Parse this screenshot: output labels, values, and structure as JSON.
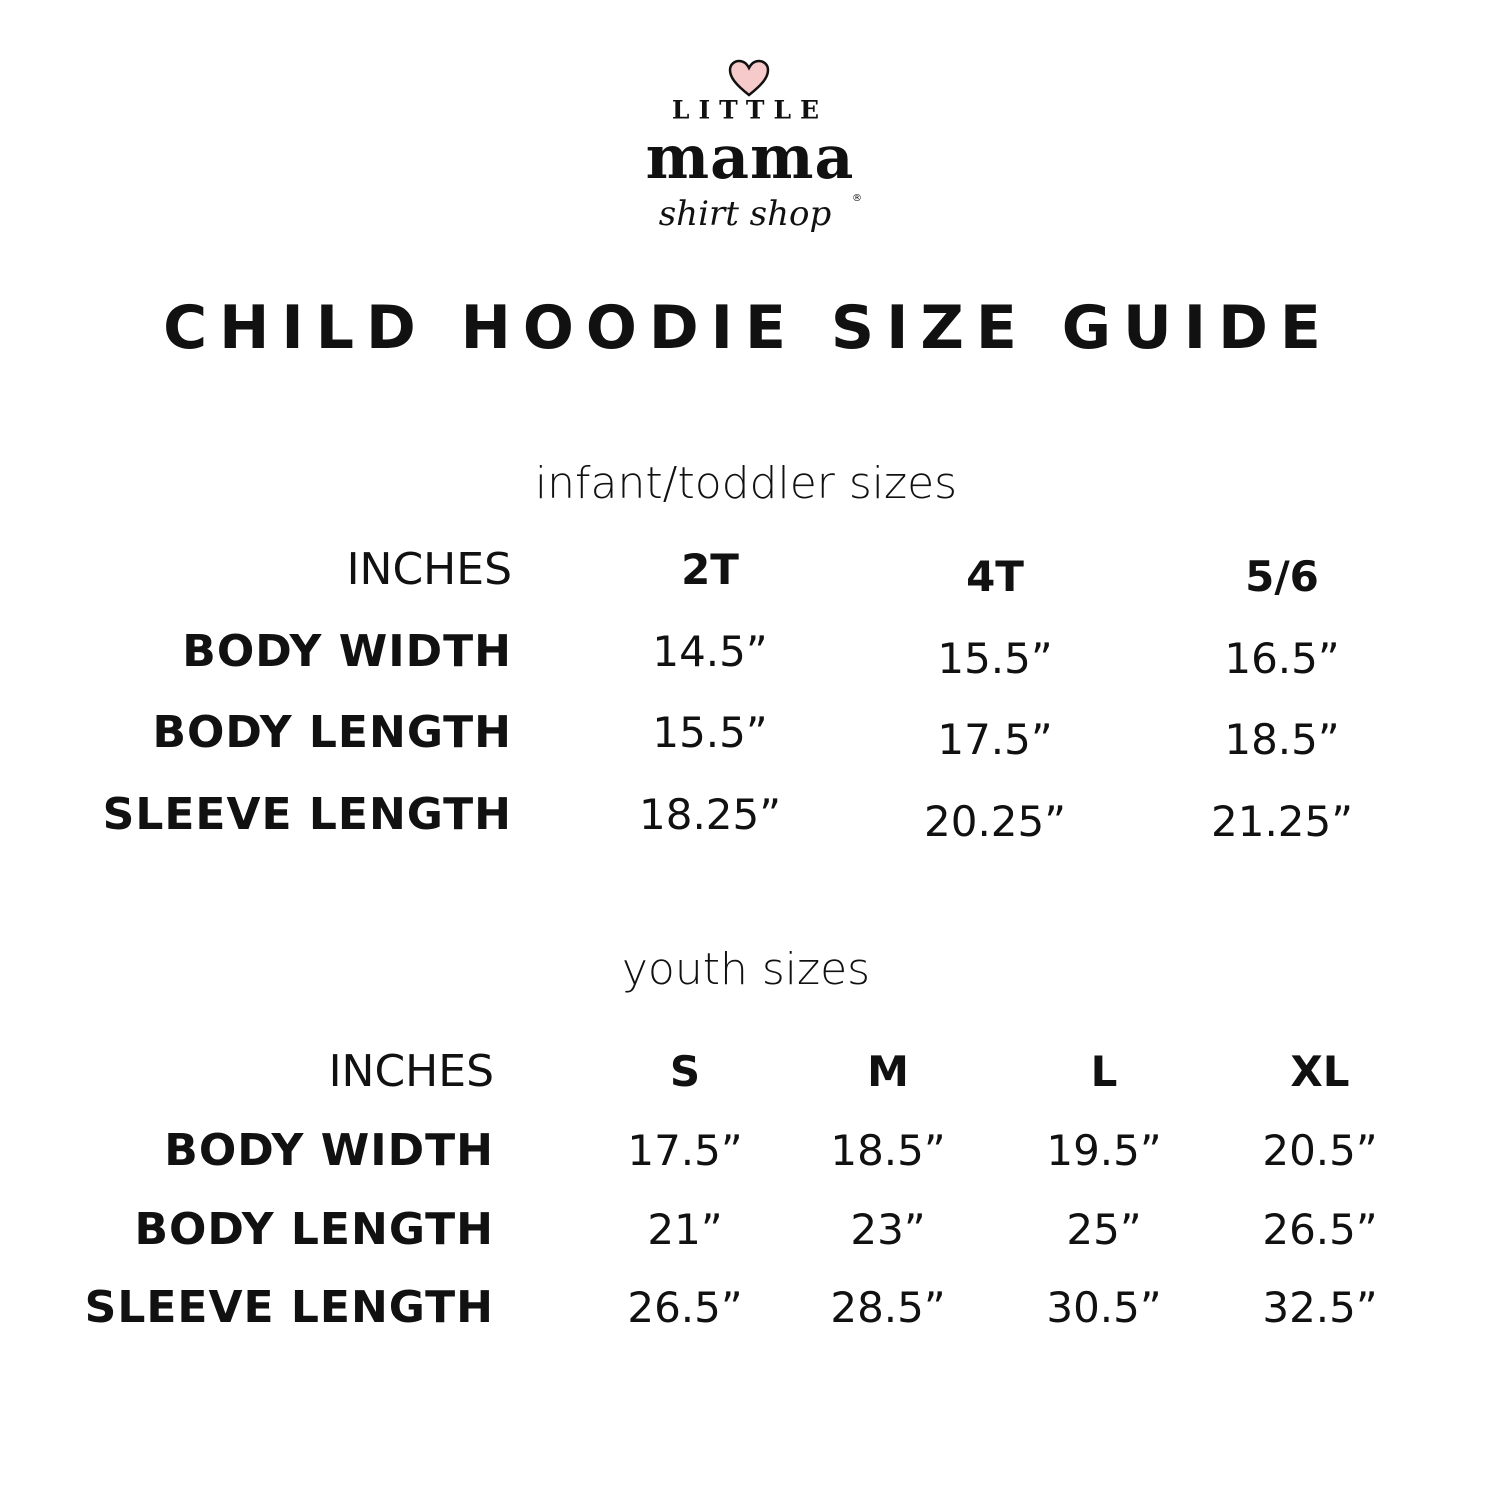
{
  "logo": {
    "line1": "LITTLE",
    "line2": "mama",
    "line3": "shirt shop",
    "heart_color": "#f6c9cb",
    "trademark": "®"
  },
  "title": "CHILD HOODIE SIZE GUIDE",
  "tables": [
    {
      "heading": "infant/toddler sizes",
      "unit_label": "INCHES",
      "sizes": [
        "2T",
        "4T",
        "5/6"
      ],
      "rows": [
        {
          "label": "BODY WIDTH",
          "values": [
            "14.5”",
            "15.5”",
            "16.5”"
          ]
        },
        {
          "label": "BODY LENGTH",
          "values": [
            "15.5”",
            "17.5”",
            "18.5”"
          ]
        },
        {
          "label": "SLEEVE LENGTH",
          "values": [
            "18.25”",
            "20.25”",
            "21.25”"
          ]
        }
      ]
    },
    {
      "heading": "youth sizes",
      "unit_label": "INCHES",
      "sizes": [
        "S",
        "M",
        "L",
        "XL"
      ],
      "rows": [
        {
          "label": "BODY WIDTH",
          "values": [
            "17.5”",
            "18.5”",
            "19.5”",
            "20.5”"
          ]
        },
        {
          "label": "BODY LENGTH",
          "values": [
            "21”",
            "23”",
            "25”",
            "26.5”"
          ]
        },
        {
          "label": "SLEEVE LENGTH",
          "values": [
            "26.5”",
            "28.5”",
            "30.5”",
            "32.5”"
          ]
        }
      ]
    }
  ]
}
